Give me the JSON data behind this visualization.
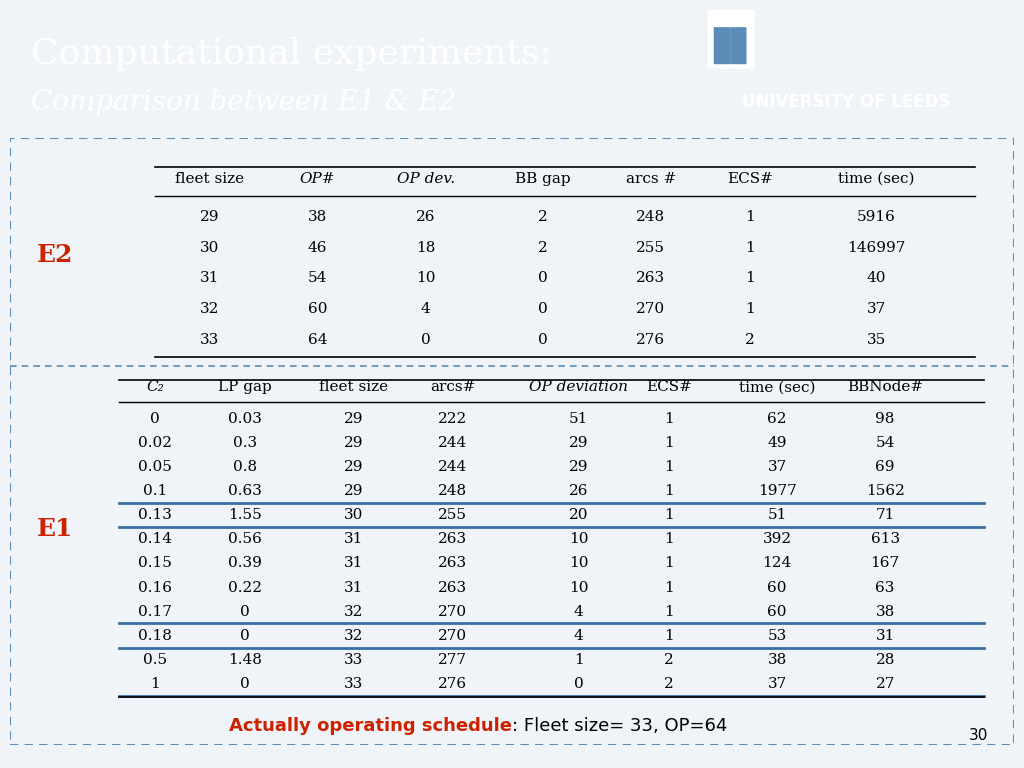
{
  "title_main": "Computational experiments:",
  "title_sub": "Comparison between E1 & E2",
  "header_bg": "#5b8db8",
  "header_text_color": "#ffffff",
  "slide_bg": "#f0f4f8",
  "table_bg": "#ffffff",
  "border_color": "#5b8db8",
  "footer_note_bold": "Actually operating schedule",
  "footer_note_rest": ": Fleet size= 33, OP=64",
  "footer_note_color": "#cc2200",
  "page_number": "30",
  "e2_label": "E2",
  "e2_headers": [
    "fleet size",
    "OP#",
    "OP dev.",
    "BB gap",
    "arcs #",
    "ECS#",
    "time (sec)"
  ],
  "e2_data": [
    [
      "29",
      "38",
      "26",
      "2",
      "248",
      "1",
      "5916"
    ],
    [
      "30",
      "46",
      "18",
      "2",
      "255",
      "1",
      "146997"
    ],
    [
      "31",
      "54",
      "10",
      "0",
      "263",
      "1",
      "40"
    ],
    [
      "32",
      "60",
      "4",
      "0",
      "270",
      "1",
      "37"
    ],
    [
      "33",
      "64",
      "0",
      "0",
      "276",
      "2",
      "35"
    ]
  ],
  "e1_label": "E1",
  "e1_headers": [
    "C₂",
    "LP gap",
    "fleet size",
    "arcs#",
    "OP deviation",
    "ECS#",
    "time (sec)",
    "BBNode#"
  ],
  "e1_data": [
    [
      "0",
      "0.03",
      "29",
      "222",
      "51",
      "1",
      "62",
      "98"
    ],
    [
      "0.02",
      "0.3",
      "29",
      "244",
      "29",
      "1",
      "49",
      "54"
    ],
    [
      "0.05",
      "0.8",
      "29",
      "244",
      "29",
      "1",
      "37",
      "69"
    ],
    [
      "0.1",
      "0.63",
      "29",
      "248",
      "26",
      "1",
      "1977",
      "1562"
    ],
    [
      "0.13",
      "1.55",
      "30",
      "255",
      "20",
      "1",
      "51",
      "71"
    ],
    [
      "0.14",
      "0.56",
      "31",
      "263",
      "10",
      "1",
      "392",
      "613"
    ],
    [
      "0.15",
      "0.39",
      "31",
      "263",
      "10",
      "1",
      "124",
      "167"
    ],
    [
      "0.16",
      "0.22",
      "31",
      "263",
      "10",
      "1",
      "60",
      "63"
    ],
    [
      "0.17",
      "0",
      "32",
      "270",
      "4",
      "1",
      "60",
      "38"
    ],
    [
      "0.18",
      "0",
      "32",
      "270",
      "4",
      "1",
      "53",
      "31"
    ],
    [
      "0.5",
      "1.48",
      "33",
      "277",
      "1",
      "2",
      "38",
      "28"
    ],
    [
      "1",
      "0",
      "33",
      "276",
      "0",
      "2",
      "37",
      "27"
    ]
  ],
  "e1_blue_lines_after": [
    3,
    4,
    8,
    9,
    11
  ],
  "label_color": "#cc2200",
  "label_fontsize": 18,
  "table_fontsize": 11,
  "header_fontsize": 11
}
